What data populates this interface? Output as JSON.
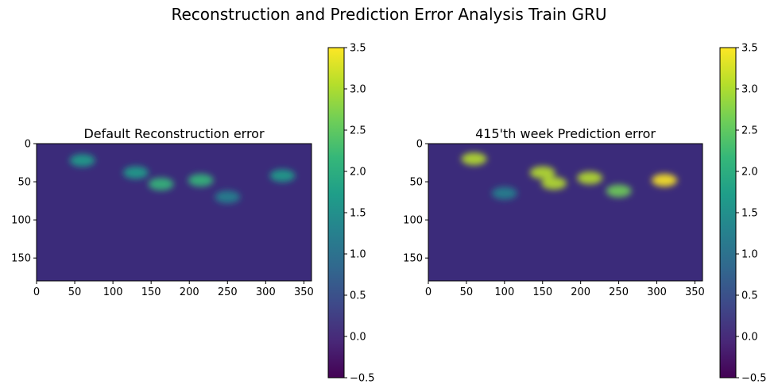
{
  "figure": {
    "title": "Reconstruction and Prediction Error Analysis Train GRU"
  },
  "colors": {
    "viridis": [
      "#440154",
      "#482878",
      "#3e4989",
      "#31688e",
      "#26828e",
      "#1f9e89",
      "#35b779",
      "#6ece58",
      "#b5de2b",
      "#fde725"
    ],
    "land": "#3b2b7a"
  },
  "chart_data": [
    {
      "type": "heatmap",
      "title": "Default Reconstruction error",
      "x_ticks": [
        "0",
        "50",
        "100",
        "150",
        "200",
        "250",
        "300",
        "350"
      ],
      "y_ticks": [
        "0",
        "50",
        "100",
        "150"
      ],
      "xlim": [
        0,
        360
      ],
      "ylim": [
        180,
        0
      ],
      "grid": false,
      "colormap": "viridis",
      "colorbar": {
        "range": [
          -0.5,
          3.5
        ],
        "ticks": [
          "−0.5",
          "0.0",
          "0.5",
          "1.0",
          "1.5",
          "2.0",
          "2.5",
          "3.0",
          "3.5"
        ]
      },
      "hotspots": [
        {
          "lon": 215,
          "lat": 48,
          "value": 2.2
        },
        {
          "lon": 163,
          "lat": 53,
          "value": 2.0
        },
        {
          "lon": 322,
          "lat": 42,
          "value": 1.8
        },
        {
          "lon": 60,
          "lat": 22,
          "value": 1.8
        },
        {
          "lon": 130,
          "lat": 38,
          "value": 1.6
        },
        {
          "lon": 250,
          "lat": 70,
          "value": 1.2
        }
      ]
    },
    {
      "type": "heatmap",
      "title": "415'th week Prediction error",
      "x_ticks": [
        "0",
        "50",
        "100",
        "150",
        "200",
        "250",
        "300",
        "350"
      ],
      "y_ticks": [
        "0",
        "50",
        "100",
        "150"
      ],
      "xlim": [
        0,
        360
      ],
      "ylim": [
        180,
        0
      ],
      "grid": false,
      "colormap": "viridis",
      "colorbar": {
        "range": [
          -0.5,
          3.5
        ],
        "ticks": [
          "−0.5",
          "0.0",
          "0.5",
          "1.0",
          "1.5",
          "2.0",
          "2.5",
          "3.0",
          "3.5"
        ]
      },
      "hotspots": [
        {
          "lon": 150,
          "lat": 38,
          "value": 3.2
        },
        {
          "lon": 165,
          "lat": 52,
          "value": 3.0
        },
        {
          "lon": 212,
          "lat": 45,
          "value": 3.0
        },
        {
          "lon": 310,
          "lat": 48,
          "value": 3.3
        },
        {
          "lon": 60,
          "lat": 20,
          "value": 3.0
        },
        {
          "lon": 250,
          "lat": 62,
          "value": 2.4
        },
        {
          "lon": 100,
          "lat": 65,
          "value": 1.4
        }
      ]
    }
  ]
}
